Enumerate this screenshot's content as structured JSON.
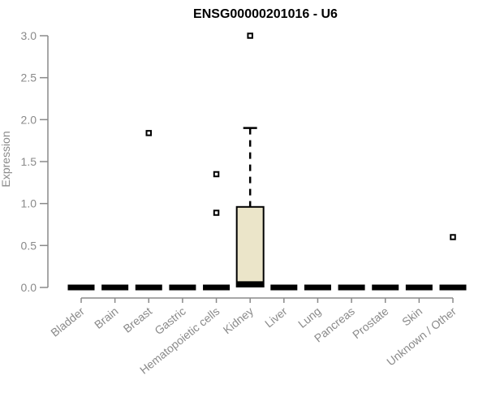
{
  "chart_data": {
    "type": "boxplot",
    "title": "ENSG00000201016 - U6",
    "ylabel": "Expression",
    "xlabel": "",
    "ylim": [
      0.0,
      3.0
    ],
    "ytick_labels": [
      "0.0",
      "0.5",
      "1.0",
      "1.5",
      "2.0",
      "2.5",
      "3.0"
    ],
    "grid": false,
    "legend": false,
    "categories": [
      "Bladder",
      "Brain",
      "Breast",
      "Gastric",
      "Hematopoietic cells",
      "Kidney",
      "Liver",
      "Lung",
      "Pancreas",
      "Prostate",
      "Skin",
      "Unknown / Other"
    ],
    "series": [
      {
        "category": "Bladder",
        "whisker_low": 0.0,
        "q1": 0.0,
        "median": 0.0,
        "q3": 0.02,
        "whisker_high": 0.02,
        "outliers": []
      },
      {
        "category": "Brain",
        "whisker_low": 0.0,
        "q1": 0.0,
        "median": 0.0,
        "q3": 0.02,
        "whisker_high": 0.02,
        "outliers": []
      },
      {
        "category": "Breast",
        "whisker_low": 0.0,
        "q1": 0.0,
        "median": 0.0,
        "q3": 0.02,
        "whisker_high": 0.02,
        "outliers": [
          1.84
        ]
      },
      {
        "category": "Gastric",
        "whisker_low": 0.0,
        "q1": 0.0,
        "median": 0.0,
        "q3": 0.02,
        "whisker_high": 0.02,
        "outliers": []
      },
      {
        "category": "Hematopoietic cells",
        "whisker_low": 0.0,
        "q1": 0.0,
        "median": 0.0,
        "q3": 0.02,
        "whisker_high": 0.02,
        "outliers": [
          1.35,
          0.89
        ]
      },
      {
        "category": "Kidney",
        "whisker_low": 0.0,
        "q1": 0.01,
        "median": 0.04,
        "q3": 0.96,
        "whisker_high": 1.9,
        "outliers": [
          3.0
        ]
      },
      {
        "category": "Liver",
        "whisker_low": 0.0,
        "q1": 0.0,
        "median": 0.0,
        "q3": 0.02,
        "whisker_high": 0.02,
        "outliers": []
      },
      {
        "category": "Lung",
        "whisker_low": 0.0,
        "q1": 0.0,
        "median": 0.0,
        "q3": 0.02,
        "whisker_high": 0.02,
        "outliers": []
      },
      {
        "category": "Pancreas",
        "whisker_low": 0.0,
        "q1": 0.0,
        "median": 0.0,
        "q3": 0.02,
        "whisker_high": 0.02,
        "outliers": []
      },
      {
        "category": "Prostate",
        "whisker_low": 0.0,
        "q1": 0.0,
        "median": 0.0,
        "q3": 0.02,
        "whisker_high": 0.02,
        "outliers": []
      },
      {
        "category": "Skin",
        "whisker_low": 0.0,
        "q1": 0.0,
        "median": 0.0,
        "q3": 0.02,
        "whisker_high": 0.02,
        "outliers": []
      },
      {
        "category": "Unknown / Other",
        "whisker_low": 0.0,
        "q1": 0.0,
        "median": 0.0,
        "q3": 0.02,
        "whisker_high": 0.02,
        "outliers": [
          0.6
        ]
      }
    ],
    "styles": {
      "box_fill": "#EBE5C9",
      "box_border": "#000000",
      "axis_color": "#8A8A8A",
      "tick_text_color": "#8A8A8A",
      "title_color": "#000000",
      "background": "#FFFFFF"
    }
  }
}
